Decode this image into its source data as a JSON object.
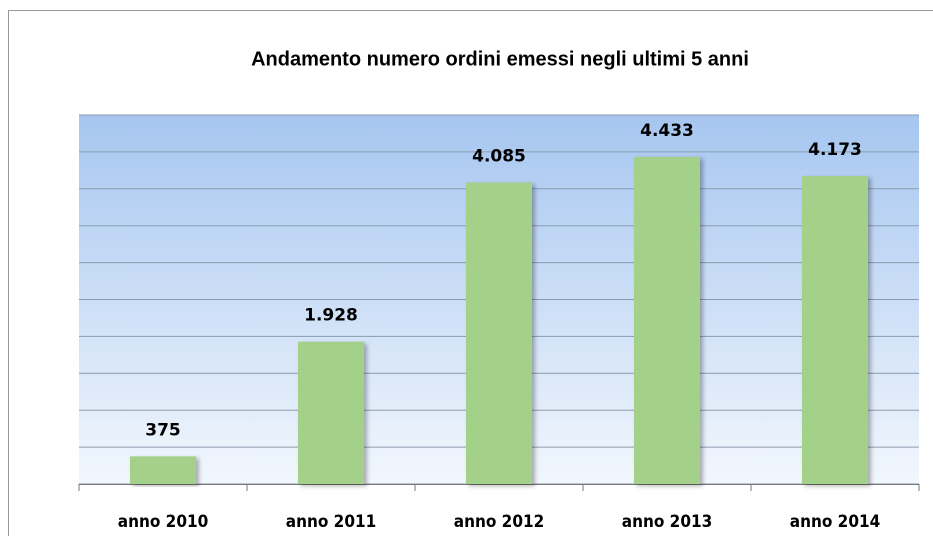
{
  "chart_data": {
    "type": "bar",
    "title": "Andamento numero ordini emessi negli ultimi 5 anni",
    "categories": [
      "anno 2010",
      "anno 2011",
      "anno 2012",
      "anno 2013",
      "anno 2014"
    ],
    "values": [
      375,
      1928,
      4085,
      4433,
      4173
    ],
    "value_labels": [
      "375",
      "1.928",
      "4.085",
      "4.433",
      "4.173"
    ],
    "color": "#a3d18a",
    "ylim": [
      0,
      5000
    ],
    "yticks": [
      0,
      500,
      1000,
      1500,
      2000,
      2500,
      3000,
      3500,
      4000,
      4500,
      5000
    ],
    "grid": true
  }
}
